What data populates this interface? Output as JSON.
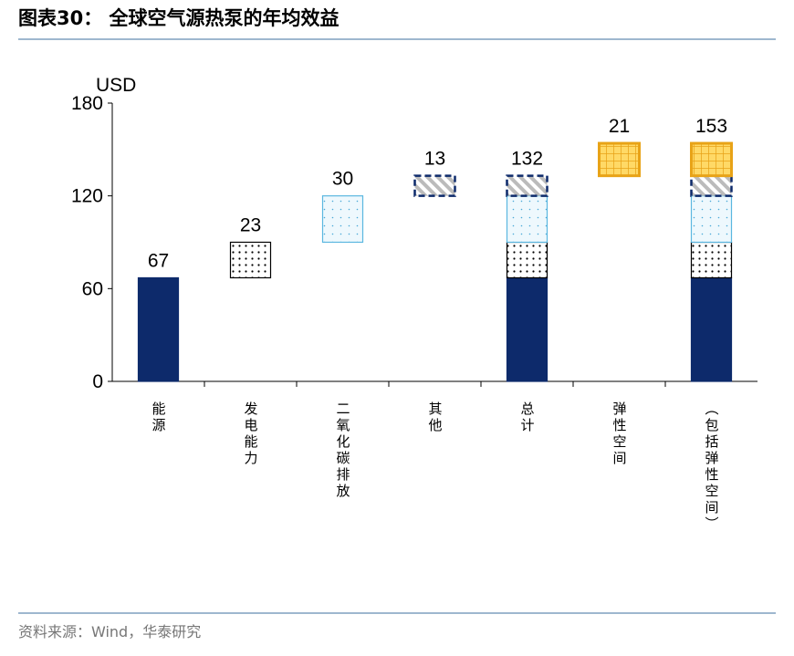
{
  "title": "图表30： 全球空气源热泵的年均效益",
  "source": "资料来源：Wind，华泰研究",
  "chart_data": {
    "type": "waterfall",
    "y_label": "USD",
    "categories": [
      "能源",
      "发电能力",
      "二氧化碳排放",
      "其他",
      "总计",
      "弹性空间",
      "（包括弹性空间）"
    ],
    "values": [
      67,
      23,
      30,
      13,
      132,
      21,
      153
    ],
    "bar_kinds": [
      "delta",
      "delta",
      "delta",
      "delta",
      "total",
      "delta",
      "total"
    ],
    "colors": [
      "#0d2a6b",
      "#000000",
      "#5bb7e0",
      "#0d2a6b",
      "#0d2a6b",
      "#e8a317",
      "#0d2a6b"
    ],
    "ylim": [
      0,
      180
    ],
    "yticks": [
      0,
      60,
      120,
      180
    ]
  }
}
